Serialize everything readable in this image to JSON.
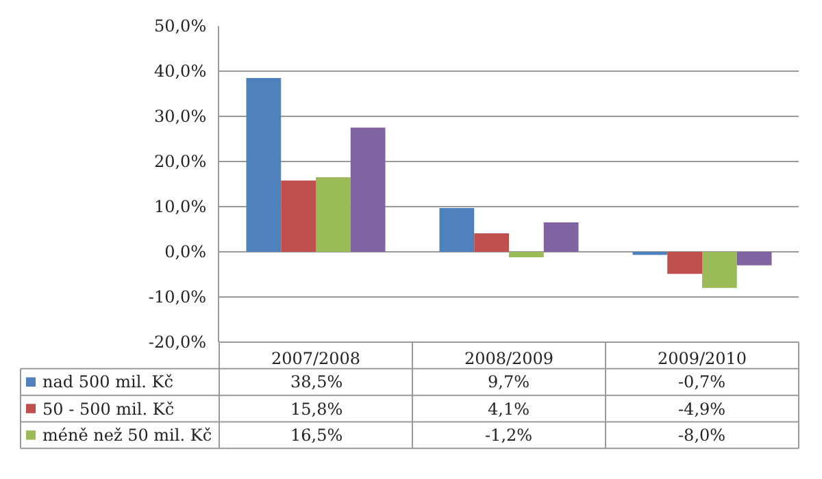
{
  "chart_data": {
    "type": "bar",
    "categories": [
      "2007/2008",
      "2008/2009",
      "2009/2010"
    ],
    "series": [
      {
        "name": "nad 500 mil. Kč",
        "color": "#4f81bd",
        "values": [
          38.5,
          9.7,
          -0.7
        ],
        "value_labels": [
          "38,5%",
          "9,7%",
          "-0,7%"
        ]
      },
      {
        "name": "50 - 500 mil. Kč",
        "color": "#c0504d",
        "values": [
          15.8,
          4.1,
          -4.9
        ],
        "value_labels": [
          "15,8%",
          "4,1%",
          "-4,9%"
        ]
      },
      {
        "name": "méně než 50 mil. Kč",
        "color": "#9bbb59",
        "values": [
          16.5,
          -1.2,
          -8.0
        ],
        "value_labels": [
          "16,5%",
          "-1,2%",
          "-8,0%"
        ]
      },
      {
        "color": "#8064a2",
        "values": [
          27.5,
          6.5,
          -3.0
        ]
      }
    ],
    "ylim": [
      -20,
      50
    ],
    "yticks": [
      {
        "value": -20,
        "label": "-20,0%"
      },
      {
        "value": -10,
        "label": "-10,0%"
      },
      {
        "value": 0,
        "label": "0,0%"
      },
      {
        "value": 10,
        "label": "10,0%"
      },
      {
        "value": 20,
        "label": "20,0%"
      },
      {
        "value": 30,
        "label": "30,0%"
      },
      {
        "value": 40,
        "label": "40,0%"
      },
      {
        "value": 50,
        "label": "50,0%"
      }
    ],
    "grid": "y",
    "legend": "bottom left"
  }
}
